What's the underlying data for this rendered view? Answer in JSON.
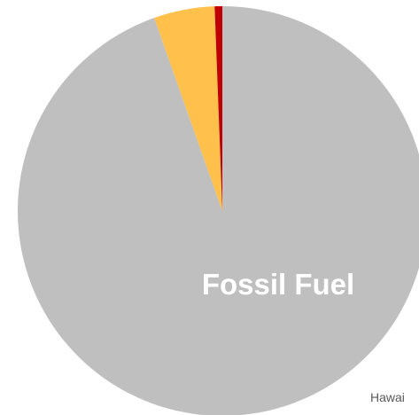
{
  "chart_data": {
    "type": "pie",
    "slices": [
      {
        "label": "Fossil Fuel",
        "value": 94.6,
        "color": "#BFBFBF",
        "show_label": true
      },
      {
        "label": "",
        "value": 4.8,
        "color": "#FFC04C",
        "show_label": false
      },
      {
        "label": "",
        "value": 0.6,
        "color": "#C00000",
        "show_label": false
      }
    ],
    "start_angle_deg": 0,
    "direction": "clockwise",
    "legend": "none",
    "note": "Hawai"
  }
}
